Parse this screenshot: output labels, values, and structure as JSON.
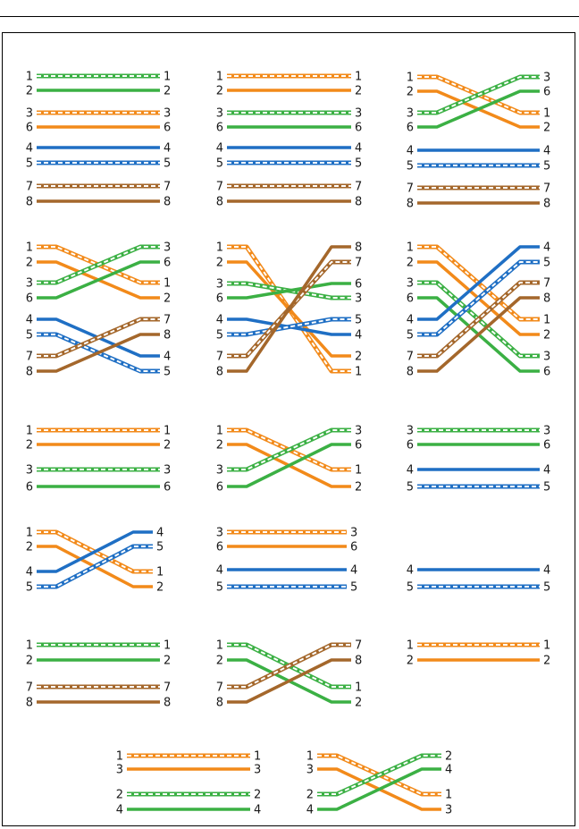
{
  "colors": {
    "green": "#3bb044",
    "orange": "#f28a1a",
    "blue": "#1f6fc4",
    "brown": "#a4672b",
    "white": "#ffffff"
  },
  "panels": [
    {
      "id": "panel-r1c1",
      "pairs": [
        {
          "l": "1",
          "r": "1",
          "color": "green",
          "striped": true,
          "from": 0,
          "to": 0
        },
        {
          "l": "2",
          "r": "2",
          "color": "green",
          "striped": false,
          "from": 1,
          "to": 1
        },
        {
          "l": "3",
          "r": "3",
          "color": "orange",
          "striped": true,
          "from": 2,
          "to": 2
        },
        {
          "l": "6",
          "r": "6",
          "color": "orange",
          "striped": false,
          "from": 3,
          "to": 3
        },
        {
          "l": "4",
          "r": "4",
          "color": "blue",
          "striped": false,
          "from": 4,
          "to": 4
        },
        {
          "l": "5",
          "r": "5",
          "color": "blue",
          "striped": true,
          "from": 5,
          "to": 5
        },
        {
          "l": "7",
          "r": "7",
          "color": "brown",
          "striped": true,
          "from": 6,
          "to": 6
        },
        {
          "l": "8",
          "r": "8",
          "color": "brown",
          "striped": false,
          "from": 7,
          "to": 7
        }
      ]
    },
    {
      "id": "panel-r1c2",
      "pairs": [
        {
          "l": "1",
          "r": "1",
          "color": "orange",
          "striped": true,
          "from": 0,
          "to": 0
        },
        {
          "l": "2",
          "r": "2",
          "color": "orange",
          "striped": false,
          "from": 1,
          "to": 1
        },
        {
          "l": "3",
          "r": "3",
          "color": "green",
          "striped": true,
          "from": 2,
          "to": 2
        },
        {
          "l": "6",
          "r": "6",
          "color": "green",
          "striped": false,
          "from": 3,
          "to": 3
        },
        {
          "l": "4",
          "r": "4",
          "color": "blue",
          "striped": false,
          "from": 4,
          "to": 4
        },
        {
          "l": "5",
          "r": "5",
          "color": "blue",
          "striped": true,
          "from": 5,
          "to": 5
        },
        {
          "l": "7",
          "r": "7",
          "color": "brown",
          "striped": true,
          "from": 6,
          "to": 6
        },
        {
          "l": "8",
          "r": "8",
          "color": "brown",
          "striped": false,
          "from": 7,
          "to": 7
        }
      ]
    },
    {
      "id": "panel-r1c3",
      "pairs": [
        {
          "l": "1",
          "r": "1",
          "color": "orange",
          "striped": true,
          "from": 0,
          "to": 2
        },
        {
          "l": "2",
          "r": "2",
          "color": "orange",
          "striped": false,
          "from": 1,
          "to": 3
        },
        {
          "l": "3",
          "r": "3",
          "color": "green",
          "striped": true,
          "from": 2,
          "to": 0
        },
        {
          "l": "6",
          "r": "6",
          "color": "green",
          "striped": false,
          "from": 3,
          "to": 1
        },
        {
          "l": "4",
          "r": "4",
          "color": "blue",
          "striped": false,
          "from": 4,
          "to": 4
        },
        {
          "l": "5",
          "r": "5",
          "color": "blue",
          "striped": true,
          "from": 5,
          "to": 5
        },
        {
          "l": "7",
          "r": "7",
          "color": "brown",
          "striped": true,
          "from": 6,
          "to": 6
        },
        {
          "l": "8",
          "r": "8",
          "color": "brown",
          "striped": false,
          "from": 7,
          "to": 7
        }
      ]
    },
    {
      "id": "panel-r2c1",
      "pairs": [
        {
          "l": "1",
          "r": "1",
          "color": "orange",
          "striped": true,
          "from": 0,
          "to": 2
        },
        {
          "l": "2",
          "r": "2",
          "color": "orange",
          "striped": false,
          "from": 1,
          "to": 3
        },
        {
          "l": "3",
          "r": "3",
          "color": "green",
          "striped": true,
          "from": 2,
          "to": 0
        },
        {
          "l": "6",
          "r": "6",
          "color": "green",
          "striped": false,
          "from": 3,
          "to": 1
        },
        {
          "l": "4",
          "r": "4",
          "color": "blue",
          "striped": false,
          "from": 4,
          "to": 6
        },
        {
          "l": "5",
          "r": "5",
          "color": "blue",
          "striped": true,
          "from": 5,
          "to": 7
        },
        {
          "l": "7",
          "r": "7",
          "color": "brown",
          "striped": true,
          "from": 6,
          "to": 4
        },
        {
          "l": "8",
          "r": "8",
          "color": "brown",
          "striped": false,
          "from": 7,
          "to": 5
        }
      ]
    },
    {
      "id": "panel-r2c2",
      "pairs": [
        {
          "l": "1",
          "r": "1",
          "color": "orange",
          "striped": true,
          "from": 0,
          "to": 7
        },
        {
          "l": "2",
          "r": "2",
          "color": "orange",
          "striped": false,
          "from": 1,
          "to": 6
        },
        {
          "l": "3",
          "r": "3",
          "color": "green",
          "striped": true,
          "from": 2,
          "to": 3
        },
        {
          "l": "6",
          "r": "6",
          "color": "green",
          "striped": false,
          "from": 3,
          "to": 2
        },
        {
          "l": "4",
          "r": "4",
          "color": "blue",
          "striped": false,
          "from": 4,
          "to": 5
        },
        {
          "l": "5",
          "r": "5",
          "color": "blue",
          "striped": true,
          "from": 5,
          "to": 4
        },
        {
          "l": "7",
          "r": "7",
          "color": "brown",
          "striped": true,
          "from": 6,
          "to": 1
        },
        {
          "l": "8",
          "r": "8",
          "color": "brown",
          "striped": false,
          "from": 7,
          "to": 0
        }
      ]
    },
    {
      "id": "panel-r2c3",
      "pairs": [
        {
          "l": "1",
          "r": "1",
          "color": "orange",
          "striped": true,
          "from": 0,
          "to": 4
        },
        {
          "l": "2",
          "r": "2",
          "color": "orange",
          "striped": false,
          "from": 1,
          "to": 5
        },
        {
          "l": "3",
          "r": "3",
          "color": "green",
          "striped": true,
          "from": 2,
          "to": 6
        },
        {
          "l": "6",
          "r": "6",
          "color": "green",
          "striped": false,
          "from": 3,
          "to": 7
        },
        {
          "l": "4",
          "r": "4",
          "color": "blue",
          "striped": false,
          "from": 4,
          "to": 0
        },
        {
          "l": "5",
          "r": "5",
          "color": "blue",
          "striped": true,
          "from": 5,
          "to": 1
        },
        {
          "l": "7",
          "r": "7",
          "color": "brown",
          "striped": true,
          "from": 6,
          "to": 2
        },
        {
          "l": "8",
          "r": "8",
          "color": "brown",
          "striped": false,
          "from": 7,
          "to": 3
        }
      ]
    },
    {
      "id": "panel-r3c1",
      "pairs": [
        {
          "l": "1",
          "r": "1",
          "color": "orange",
          "striped": true,
          "from": 0,
          "to": 0
        },
        {
          "l": "2",
          "r": "2",
          "color": "orange",
          "striped": false,
          "from": 1,
          "to": 1
        },
        {
          "l": "3",
          "r": "3",
          "color": "green",
          "striped": true,
          "from": 2,
          "to": 2
        },
        {
          "l": "6",
          "r": "6",
          "color": "green",
          "striped": false,
          "from": 3,
          "to": 3
        }
      ]
    },
    {
      "id": "panel-r3c2",
      "pairs": [
        {
          "l": "1",
          "r": "1",
          "color": "orange",
          "striped": true,
          "from": 0,
          "to": 2
        },
        {
          "l": "2",
          "r": "2",
          "color": "orange",
          "striped": false,
          "from": 1,
          "to": 3
        },
        {
          "l": "3",
          "r": "3",
          "color": "green",
          "striped": true,
          "from": 2,
          "to": 0
        },
        {
          "l": "6",
          "r": "6",
          "color": "green",
          "striped": false,
          "from": 3,
          "to": 1
        }
      ]
    },
    {
      "id": "panel-r3c3",
      "pairs": [
        {
          "l": "3",
          "r": "3",
          "color": "green",
          "striped": true,
          "from": 0,
          "to": 0
        },
        {
          "l": "6",
          "r": "6",
          "color": "green",
          "striped": false,
          "from": 1,
          "to": 1
        },
        {
          "l": "4",
          "r": "4",
          "color": "blue",
          "striped": false,
          "from": 2,
          "to": 2
        },
        {
          "l": "5",
          "r": "5",
          "color": "blue",
          "striped": true,
          "from": 3,
          "to": 3
        }
      ]
    },
    {
      "id": "panel-r4c1",
      "pairs": [
        {
          "l": "1",
          "r": "1",
          "color": "orange",
          "striped": true,
          "from": 0,
          "to": 2
        },
        {
          "l": "2",
          "r": "2",
          "color": "orange",
          "striped": false,
          "from": 1,
          "to": 3
        },
        {
          "l": "4",
          "r": "4",
          "color": "blue",
          "striped": false,
          "from": 2,
          "to": 0
        },
        {
          "l": "5",
          "r": "5",
          "color": "blue",
          "striped": true,
          "from": 3,
          "to": 1
        }
      ]
    },
    {
      "id": "panel-r4c2",
      "pairs": [
        {
          "l": "3",
          "r": "3",
          "color": "orange",
          "striped": true,
          "from": 0,
          "to": 0
        },
        {
          "l": "6",
          "r": "6",
          "color": "orange",
          "striped": false,
          "from": 1,
          "to": 1
        },
        {
          "l": "4",
          "r": "4",
          "color": "blue",
          "striped": false,
          "from": 2,
          "to": 2
        },
        {
          "l": "5",
          "r": "5",
          "color": "blue",
          "striped": true,
          "from": 3,
          "to": 3
        }
      ]
    },
    {
      "id": "panel-r4c3",
      "pairs": [
        {
          "l": "4",
          "r": "4",
          "color": "blue",
          "striped": false,
          "from": 2,
          "to": 2
        },
        {
          "l": "5",
          "r": "5",
          "color": "blue",
          "striped": true,
          "from": 3,
          "to": 3
        }
      ]
    },
    {
      "id": "panel-r5c1",
      "pairs": [
        {
          "l": "1",
          "r": "1",
          "color": "green",
          "striped": true,
          "from": 0,
          "to": 0
        },
        {
          "l": "2",
          "r": "2",
          "color": "green",
          "striped": false,
          "from": 1,
          "to": 1
        },
        {
          "l": "7",
          "r": "7",
          "color": "brown",
          "striped": true,
          "from": 2,
          "to": 2
        },
        {
          "l": "8",
          "r": "8",
          "color": "brown",
          "striped": false,
          "from": 3,
          "to": 3
        }
      ]
    },
    {
      "id": "panel-r5c2",
      "pairs": [
        {
          "l": "1",
          "r": "1",
          "color": "green",
          "striped": true,
          "from": 0,
          "to": 2
        },
        {
          "l": "2",
          "r": "2",
          "color": "green",
          "striped": false,
          "from": 1,
          "to": 3
        },
        {
          "l": "7",
          "r": "7",
          "color": "brown",
          "striped": true,
          "from": 2,
          "to": 0
        },
        {
          "l": "8",
          "r": "8",
          "color": "brown",
          "striped": false,
          "from": 3,
          "to": 1
        }
      ]
    },
    {
      "id": "panel-r5c3",
      "pairs": [
        {
          "l": "1",
          "r": "1",
          "color": "orange",
          "striped": true,
          "from": 0,
          "to": 0
        },
        {
          "l": "2",
          "r": "2",
          "color": "orange",
          "striped": false,
          "from": 1,
          "to": 1
        }
      ]
    },
    {
      "id": "panel-r6c1",
      "pairs": [
        {
          "l": "1",
          "r": "1",
          "color": "orange",
          "striped": true,
          "from": 0,
          "to": 0
        },
        {
          "l": "3",
          "r": "3",
          "color": "orange",
          "striped": false,
          "from": 1,
          "to": 1
        },
        {
          "l": "2",
          "r": "2",
          "color": "green",
          "striped": true,
          "from": 2,
          "to": 2
        },
        {
          "l": "4",
          "r": "4",
          "color": "green",
          "striped": false,
          "from": 3,
          "to": 3
        }
      ]
    },
    {
      "id": "panel-r6c2",
      "pairs": [
        {
          "l": "1",
          "r": "1",
          "color": "orange",
          "striped": true,
          "from": 0,
          "to": 2
        },
        {
          "l": "3",
          "r": "3",
          "color": "orange",
          "striped": false,
          "from": 1,
          "to": 3
        },
        {
          "l": "2",
          "r": "2",
          "color": "green",
          "striped": true,
          "from": 2,
          "to": 0
        },
        {
          "l": "4",
          "r": "4",
          "color": "green",
          "striped": false,
          "from": 3,
          "to": 1
        }
      ]
    }
  ]
}
